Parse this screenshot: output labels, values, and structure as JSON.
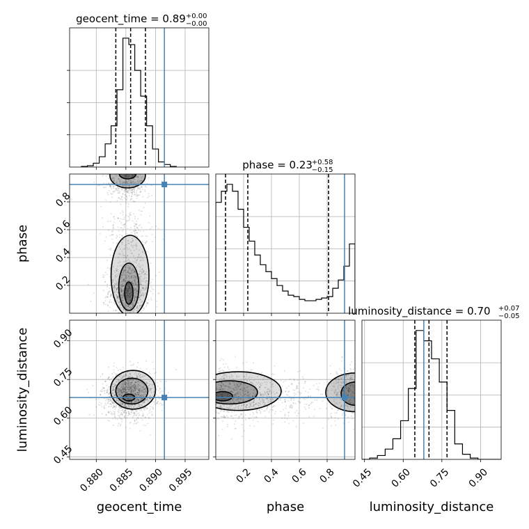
{
  "chart_data": {
    "type": "corner",
    "parameters": [
      "geocent_time",
      "phase",
      "luminosity_distance"
    ],
    "truth_color": "#4682b4",
    "truths": {
      "geocent_time": 0.8915,
      "phase": 0.925,
      "luminosity_distance": 0.68
    },
    "titles": {
      "geocent_time": {
        "label": "geocent_time = 0.89",
        "plus": "+0.00",
        "minus": "−0.00"
      },
      "phase": {
        "label": "phase = 0.23",
        "plus": "+0.58",
        "minus": "−0.15"
      },
      "luminosity_distance": {
        "label": "luminosity_distance = 0.70",
        "plus": "+0.07",
        "minus": "−0.05"
      }
    },
    "axes": {
      "geocent_time": {
        "range": [
          0.8755,
          0.899
        ],
        "ticks": [
          0.88,
          0.885,
          0.89,
          0.895
        ],
        "tick_labels": [
          "0.880",
          "0.885",
          "0.890",
          "0.895"
        ]
      },
      "phase": {
        "range": [
          0.0,
          1.0
        ],
        "ticks": [
          0.2,
          0.4,
          0.6,
          0.8
        ],
        "tick_labels": [
          "0.2",
          "0.4",
          "0.6",
          "0.8"
        ]
      },
      "luminosity_distance": {
        "range": [
          0.44,
          0.98
        ],
        "ticks": [
          0.45,
          0.6,
          0.75,
          0.9
        ],
        "tick_labels": [
          "0.45",
          "0.60",
          "0.75",
          "0.90"
        ]
      }
    },
    "histograms": {
      "geocent_time": {
        "bin_edges": [
          0.8775,
          0.8785,
          0.8795,
          0.8805,
          0.8815,
          0.8825,
          0.8835,
          0.8845,
          0.8855,
          0.8865,
          0.8875,
          0.8885,
          0.8895,
          0.8905,
          0.8915,
          0.8925,
          0.8935
        ],
        "counts": [
          0.5,
          1,
          3,
          8,
          18,
          32,
          60,
          100,
          95,
          75,
          55,
          32,
          14,
          4,
          2,
          0.5
        ],
        "quantiles": [
          0.8833,
          0.8858,
          0.8883
        ]
      },
      "phase": {
        "bin_edges": [
          0.0,
          0.04,
          0.08,
          0.12,
          0.16,
          0.2,
          0.24,
          0.28,
          0.32,
          0.36,
          0.4,
          0.44,
          0.48,
          0.52,
          0.56,
          0.6,
          0.64,
          0.68,
          0.72,
          0.76,
          0.8,
          0.84,
          0.88,
          0.92,
          0.96,
          1.0
        ],
        "counts": [
          80,
          88,
          93,
          88,
          75,
          62,
          52,
          42,
          35,
          30,
          25,
          20,
          16,
          13,
          12,
          10,
          9,
          9,
          10,
          11,
          12,
          18,
          24,
          34,
          50
        ],
        "quantiles": [
          0.07,
          0.23,
          0.81
        ]
      },
      "luminosity_distance": {
        "bin_edges": [
          0.44,
          0.47,
          0.5,
          0.53,
          0.56,
          0.59,
          0.62,
          0.65,
          0.68,
          0.71,
          0.74,
          0.77,
          0.8,
          0.83,
          0.86,
          0.89,
          0.92,
          0.95,
          0.98
        ],
        "counts": [
          0,
          1,
          3,
          8,
          16,
          30,
          55,
          100,
          92,
          78,
          60,
          38,
          12,
          4,
          1,
          0,
          0,
          0
        ],
        "quantiles": [
          0.645,
          0.7,
          0.77
        ]
      }
    },
    "scatter": [
      {
        "x": "geocent_time",
        "y": "phase",
        "blobs": [
          {
            "cx": 0.8855,
            "cy": 0.16,
            "sx": 0.0017,
            "sy": 0.1,
            "n": 900
          },
          {
            "cx": 0.8853,
            "cy": 0.93,
            "sx": 0.0018,
            "sy": 0.05,
            "n": 350
          },
          {
            "cx": 0.8855,
            "cy": 0.55,
            "sx": 0.002,
            "sy": 0.22,
            "n": 350
          }
        ],
        "contours": [
          {
            "cx": 0.8855,
            "cy": 0.145,
            "rx": 0.0007,
            "ry": 0.08,
            "shape": "ellipse"
          },
          {
            "cx": 0.8855,
            "cy": 0.19,
            "rx": 0.0017,
            "ry": 0.17,
            "shape": "ellipse"
          },
          {
            "cx": 0.8857,
            "cy": 0.27,
            "rx": 0.0032,
            "ry": 0.29,
            "shape": "ellipse"
          },
          {
            "cx": 0.8853,
            "cy": 0.99,
            "rx": 0.003,
            "ry": 0.09,
            "shape": "cap"
          },
          {
            "cx": 0.8853,
            "cy": 1.0,
            "rx": 0.0014,
            "ry": 0.035,
            "shape": "cap"
          }
        ]
      },
      {
        "x": "geocent_time",
        "y": "luminosity_distance",
        "blobs": [
          {
            "cx": 0.8855,
            "cy": 0.69,
            "sx": 0.0022,
            "sy": 0.045,
            "n": 1300
          }
        ],
        "contours": [
          {
            "cx": 0.8855,
            "cy": 0.68,
            "rx": 0.001,
            "ry": 0.013,
            "shape": "ellipse"
          },
          {
            "cx": 0.886,
            "cy": 0.705,
            "rx": 0.0027,
            "ry": 0.05,
            "shape": "ellipse"
          },
          {
            "cx": 0.8862,
            "cy": 0.71,
            "rx": 0.0038,
            "ry": 0.075,
            "shape": "ellipse"
          }
        ]
      },
      {
        "x": "phase",
        "y": "luminosity_distance",
        "blobs": [
          {
            "cx": 0.08,
            "cy": 0.69,
            "sx": 0.16,
            "sy": 0.05,
            "n": 900
          },
          {
            "cx": 0.95,
            "cy": 0.7,
            "sx": 0.07,
            "sy": 0.05,
            "n": 350
          },
          {
            "cx": 0.45,
            "cy": 0.68,
            "sx": 0.2,
            "sy": 0.04,
            "n": 300
          }
        ],
        "contours": [
          {
            "cx": 0.05,
            "cy": 0.685,
            "rx": 0.07,
            "ry": 0.018,
            "shape": "ellipse"
          },
          {
            "cx": 0.1,
            "cy": 0.7,
            "rx": 0.2,
            "ry": 0.045,
            "shape": "ellipse"
          },
          {
            "cx": 0.16,
            "cy": 0.705,
            "rx": 0.31,
            "ry": 0.075,
            "shape": "ellipse"
          },
          {
            "cx": 1.0,
            "cy": 0.695,
            "rx": 0.1,
            "ry": 0.045,
            "shape": "ellipse"
          },
          {
            "cx": 1.0,
            "cy": 0.7,
            "rx": 0.21,
            "ry": 0.075,
            "shape": "ellipse"
          }
        ]
      }
    ],
    "grid": true
  }
}
